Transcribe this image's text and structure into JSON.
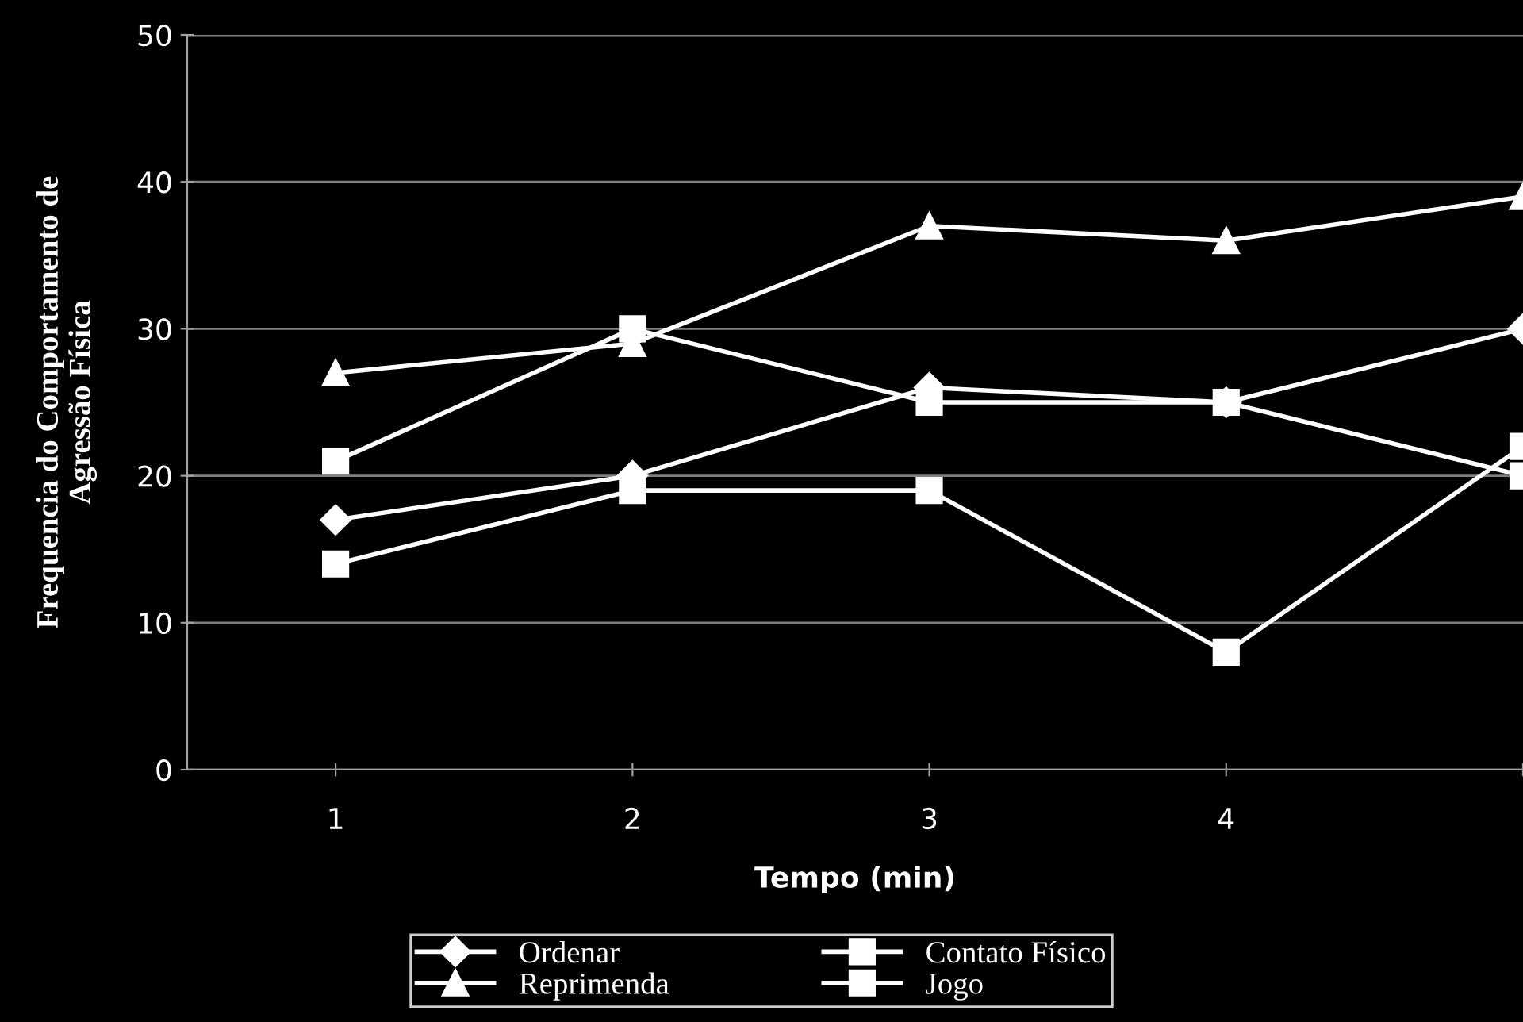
{
  "chart_data": {
    "type": "line",
    "xlabel": "Tempo (min)",
    "ylabel": "Frequencia do Comportamento de\nAgressão Física",
    "categories": [
      "1",
      "2",
      "3",
      "4",
      null
    ],
    "series": [
      {
        "name": "Ordenar",
        "color": "#ffffff",
        "marker": "diamond",
        "values": [
          17,
          20,
          26,
          25,
          30
        ]
      },
      {
        "name": "Contato Físico",
        "color": "#ffffff",
        "marker": "square",
        "values": [
          14,
          19,
          19,
          8,
          22
        ]
      },
      {
        "name": "Reprimenda",
        "color": "#ffffff",
        "marker": "triangle",
        "values": [
          27,
          29,
          37,
          36,
          39
        ]
      },
      {
        "name": "Jogo",
        "color": "#ffffff",
        "marker": "square",
        "values": [
          21,
          30,
          25,
          25,
          20
        ]
      }
    ],
    "ylim": [
      0,
      50
    ],
    "yticks": [
      0,
      10,
      20,
      30,
      40,
      50
    ],
    "grid": "y",
    "legend": "bottom",
    "line_style": "solid"
  }
}
